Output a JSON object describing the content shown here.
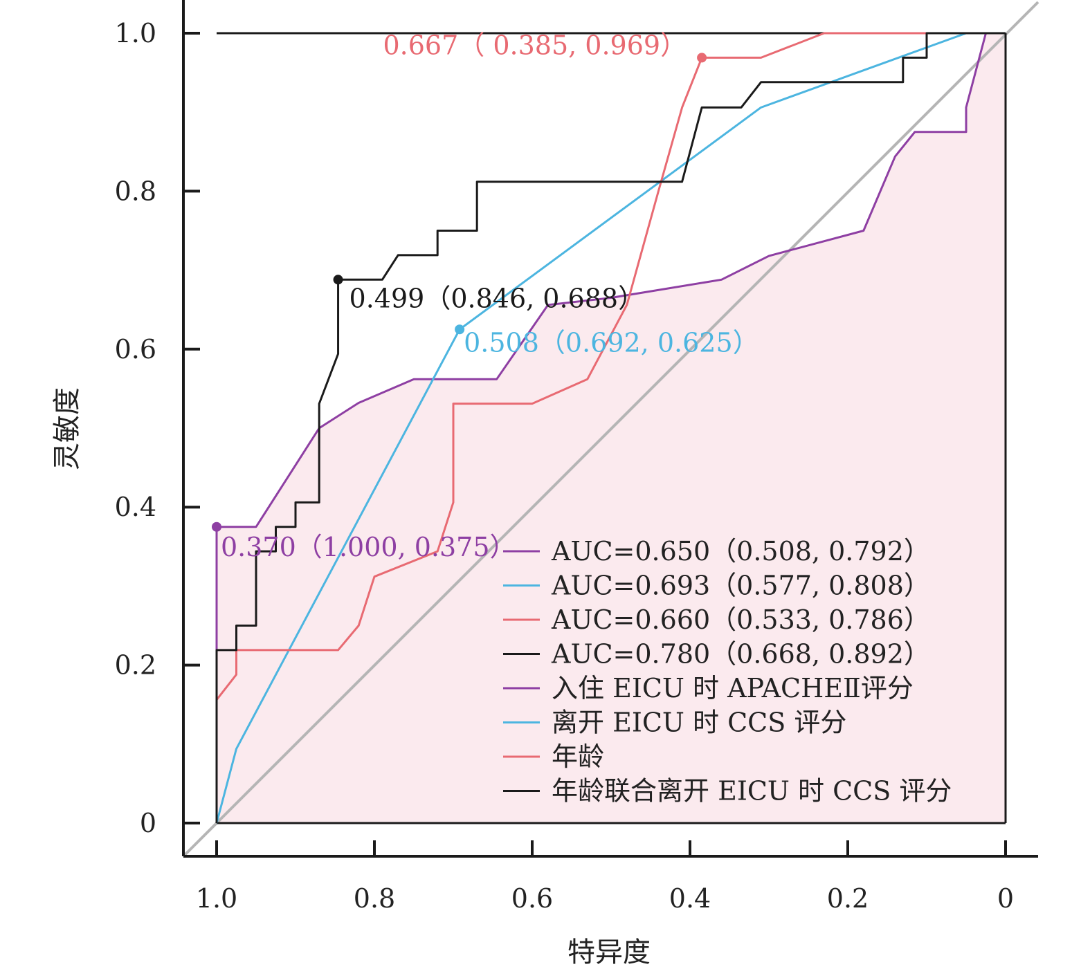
{
  "chart_data": {
    "type": "line",
    "title": "",
    "xlabel": "特异度",
    "ylabel": "灵敏度",
    "xlim": [
      1.0,
      0.0
    ],
    "ylim": [
      0.0,
      1.0
    ],
    "x_ticks": [
      "1.0",
      "0.8",
      "0.6",
      "0.4",
      "0.2",
      "0"
    ],
    "y_ticks": [
      "0",
      "0.2",
      "0.4",
      "0.6",
      "0.8",
      "1.0"
    ],
    "grid": false,
    "legend_position": "bottom-right",
    "reference_line": true,
    "series": [
      {
        "name": "入住 EICU 时 APACHEⅡ评分",
        "auc_label": "AUC=0.650（0.508, 0.792）",
        "color": "#8e3fa3",
        "filled": true,
        "fill_color": "#fbeaee",
        "points": [
          [
            1.0,
            0.0
          ],
          [
            1.0,
            0.375
          ],
          [
            0.95,
            0.375
          ],
          [
            0.87,
            0.5
          ],
          [
            0.82,
            0.532
          ],
          [
            0.75,
            0.562
          ],
          [
            0.645,
            0.562
          ],
          [
            0.58,
            0.656
          ],
          [
            0.5,
            0.665
          ],
          [
            0.36,
            0.688
          ],
          [
            0.3,
            0.718
          ],
          [
            0.18,
            0.75
          ],
          [
            0.14,
            0.844
          ],
          [
            0.115,
            0.875
          ],
          [
            0.05,
            0.875
          ],
          [
            0.05,
            0.906
          ],
          [
            0.025,
            1.0
          ],
          [
            0.0,
            1.0
          ]
        ],
        "annotation": {
          "text": "0.370（1.000, 0.375）",
          "point": [
            1.0,
            0.375
          ]
        }
      },
      {
        "name": "离开 EICU 时 CCS 评分",
        "auc_label": "AUC=0.693（0.577, 0.808）",
        "color": "#4cb5e0",
        "points": [
          [
            1.0,
            0.0
          ],
          [
            0.975,
            0.094
          ],
          [
            0.692,
            0.625
          ],
          [
            0.31,
            0.906
          ],
          [
            0.05,
            1.0
          ],
          [
            0.0,
            1.0
          ]
        ],
        "annotation": {
          "text": "0.508（0.692, 0.625）",
          "point": [
            0.692,
            0.625
          ]
        }
      },
      {
        "name": "年龄",
        "auc_label": "AUC=0.660（0.533, 0.786）",
        "color": "#e86a72",
        "points": [
          [
            1.0,
            0.156
          ],
          [
            0.975,
            0.188
          ],
          [
            0.975,
            0.219
          ],
          [
            0.846,
            0.219
          ],
          [
            0.82,
            0.25
          ],
          [
            0.8,
            0.312
          ],
          [
            0.72,
            0.344
          ],
          [
            0.7,
            0.406
          ],
          [
            0.7,
            0.531
          ],
          [
            0.6,
            0.531
          ],
          [
            0.53,
            0.562
          ],
          [
            0.48,
            0.656
          ],
          [
            0.44,
            0.8
          ],
          [
            0.41,
            0.906
          ],
          [
            0.385,
            0.969
          ],
          [
            0.31,
            0.969
          ],
          [
            0.23,
            1.0
          ],
          [
            0.0,
            1.0
          ]
        ],
        "annotation": {
          "text": "0.667（ 0.385, 0.969）",
          "point": [
            0.385,
            0.969
          ]
        }
      },
      {
        "name": "年龄联合离开 EICU 时 CCS 评分",
        "auc_label": "AUC=0.780（0.668, 0.892）",
        "color": "#1a1a1a",
        "points": [
          [
            1.0,
            0.0
          ],
          [
            1.0,
            0.219
          ],
          [
            0.975,
            0.219
          ],
          [
            0.975,
            0.25
          ],
          [
            0.95,
            0.25
          ],
          [
            0.95,
            0.344
          ],
          [
            0.925,
            0.344
          ],
          [
            0.925,
            0.375
          ],
          [
            0.9,
            0.375
          ],
          [
            0.9,
            0.406
          ],
          [
            0.87,
            0.406
          ],
          [
            0.87,
            0.531
          ],
          [
            0.846,
            0.594
          ],
          [
            0.846,
            0.688
          ],
          [
            0.79,
            0.688
          ],
          [
            0.77,
            0.719
          ],
          [
            0.72,
            0.719
          ],
          [
            0.72,
            0.75
          ],
          [
            0.67,
            0.75
          ],
          [
            0.67,
            0.812
          ],
          [
            0.41,
            0.812
          ],
          [
            0.385,
            0.906
          ],
          [
            0.335,
            0.906
          ],
          [
            0.31,
            0.938
          ],
          [
            0.13,
            0.938
          ],
          [
            0.13,
            0.969
          ],
          [
            0.1,
            0.969
          ],
          [
            0.1,
            1.0
          ],
          [
            0.0,
            1.0
          ]
        ],
        "annotation": {
          "text": "0.499（0.846, 0.688）",
          "point": [
            0.846,
            0.688
          ]
        }
      }
    ]
  }
}
